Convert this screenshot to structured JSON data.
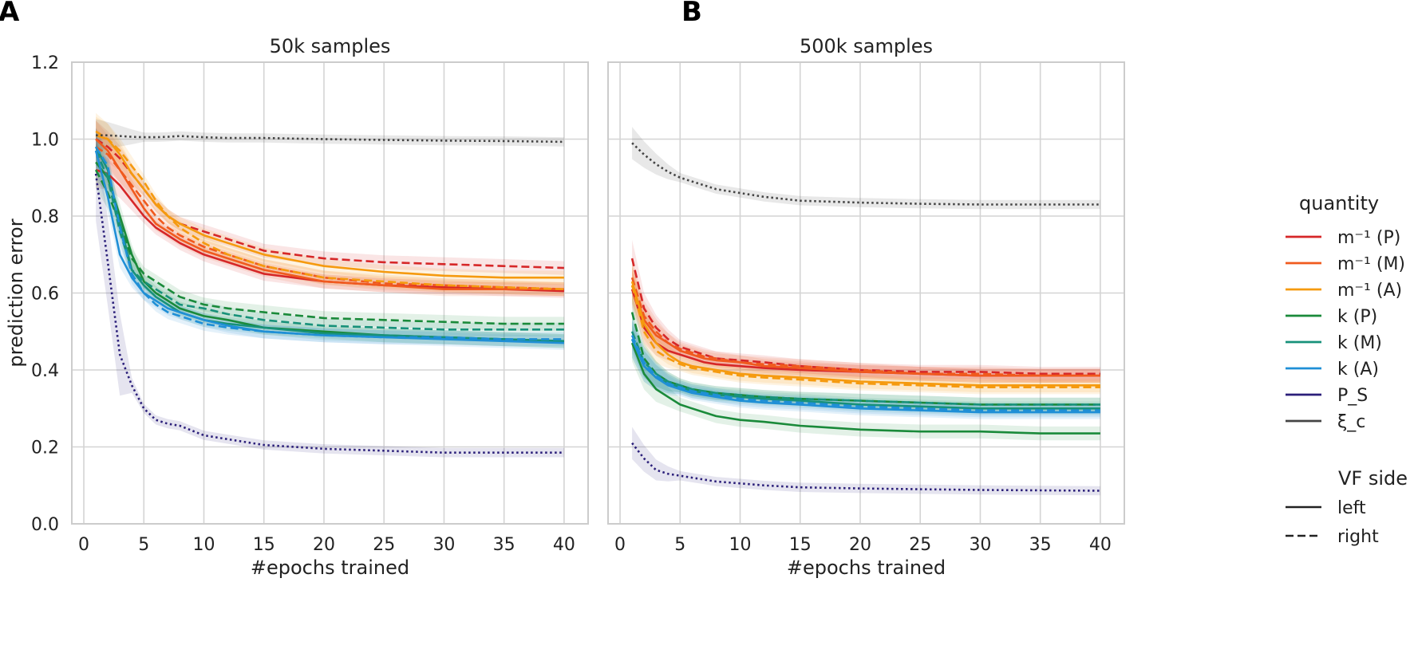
{
  "panels": {
    "a": {
      "letter": "A"
    },
    "b": {
      "letter": "B"
    }
  },
  "colors": {
    "m_P": "#d62728",
    "m_M": "#f05a1e",
    "m_A": "#f59a0f",
    "k_P": "#1a8a3a",
    "k_M": "#17917a",
    "k_A": "#1f8fd6",
    "P_S": "#2b1f7a",
    "xi_c": "#444444"
  },
  "legend": {
    "quantity_title": "quantity",
    "items": [
      {
        "key": "m_P",
        "label": "m⁻¹ (P)"
      },
      {
        "key": "m_M",
        "label": "m⁻¹ (M)"
      },
      {
        "key": "m_A",
        "label": "m⁻¹ (A)"
      },
      {
        "key": "k_P",
        "label": "k (P)"
      },
      {
        "key": "k_M",
        "label": "k (M)"
      },
      {
        "key": "k_A",
        "label": "k (A)"
      },
      {
        "key": "P_S",
        "label": "P_S"
      },
      {
        "key": "xi_c",
        "label": "ξ_c"
      }
    ],
    "side_title": "VF side",
    "sides": [
      {
        "style": "solid",
        "label": "left"
      },
      {
        "style": "dashed",
        "label": "right"
      }
    ]
  },
  "chart_data": [
    {
      "type": "line",
      "title": "50k samples",
      "xlabel": "#epochs trained",
      "ylabel": "prediction error",
      "xlim": [
        -1,
        42
      ],
      "ylim": [
        0,
        1.2
      ],
      "xticks": [
        0,
        5,
        10,
        15,
        20,
        25,
        30,
        35,
        40
      ],
      "yticks": [
        0.0,
        0.2,
        0.4,
        0.6,
        0.8,
        1.0,
        1.2
      ],
      "x": [
        1,
        2,
        3,
        4,
        5,
        6,
        7,
        8,
        10,
        12,
        15,
        20,
        25,
        30,
        35,
        40
      ],
      "series": [
        {
          "name": "m⁻¹ (P) left",
          "key": "m_P",
          "style": "solid",
          "values": [
            0.92,
            0.91,
            0.88,
            0.84,
            0.8,
            0.77,
            0.75,
            0.73,
            0.7,
            0.68,
            0.65,
            0.63,
            0.62,
            0.615,
            0.61,
            0.605
          ]
        },
        {
          "name": "m⁻¹ (P) right",
          "key": "m_P",
          "style": "dashed",
          "values": [
            1.0,
            0.98,
            0.95,
            0.91,
            0.87,
            0.83,
            0.8,
            0.78,
            0.76,
            0.74,
            0.71,
            0.69,
            0.68,
            0.675,
            0.67,
            0.665
          ]
        },
        {
          "name": "m⁻¹ (M) left",
          "key": "m_M",
          "style": "solid",
          "values": [
            1.0,
            0.97,
            0.92,
            0.87,
            0.82,
            0.78,
            0.76,
            0.74,
            0.71,
            0.69,
            0.66,
            0.63,
            0.62,
            0.61,
            0.61,
            0.61
          ]
        },
        {
          "name": "m⁻¹ (M) right",
          "key": "m_M",
          "style": "dashed",
          "values": [
            0.98,
            0.96,
            0.92,
            0.88,
            0.84,
            0.8,
            0.77,
            0.75,
            0.72,
            0.7,
            0.67,
            0.64,
            0.625,
            0.62,
            0.615,
            0.61
          ]
        },
        {
          "name": "m⁻¹ (A) left",
          "key": "m_A",
          "style": "solid",
          "values": [
            1.01,
            1.0,
            0.96,
            0.91,
            0.87,
            0.83,
            0.8,
            0.78,
            0.75,
            0.73,
            0.7,
            0.67,
            0.655,
            0.645,
            0.64,
            0.64
          ]
        },
        {
          "name": "m⁻¹ (A) right",
          "key": "m_A",
          "style": "dashed",
          "values": [
            1.02,
            1.0,
            0.97,
            0.93,
            0.89,
            0.84,
            0.8,
            0.77,
            0.73,
            0.7,
            0.67,
            0.64,
            0.63,
            0.62,
            0.615,
            0.61
          ]
        },
        {
          "name": "k (P) left",
          "key": "k_P",
          "style": "solid",
          "values": [
            0.94,
            0.9,
            0.8,
            0.7,
            0.63,
            0.6,
            0.58,
            0.56,
            0.54,
            0.53,
            0.51,
            0.5,
            0.49,
            0.485,
            0.48,
            0.475
          ]
        },
        {
          "name": "k (P) right",
          "key": "k_P",
          "style": "dashed",
          "values": [
            0.92,
            0.86,
            0.78,
            0.69,
            0.65,
            0.63,
            0.61,
            0.59,
            0.57,
            0.56,
            0.55,
            0.535,
            0.53,
            0.525,
            0.52,
            0.52
          ]
        },
        {
          "name": "k (M) left",
          "key": "k_M",
          "style": "solid",
          "values": [
            0.98,
            0.92,
            0.78,
            0.66,
            0.62,
            0.59,
            0.57,
            0.55,
            0.53,
            0.52,
            0.51,
            0.495,
            0.49,
            0.485,
            0.48,
            0.475
          ]
        },
        {
          "name": "k (M) right",
          "key": "k_M",
          "style": "dashed",
          "values": [
            0.97,
            0.9,
            0.76,
            0.66,
            0.63,
            0.61,
            0.59,
            0.57,
            0.56,
            0.545,
            0.53,
            0.515,
            0.51,
            0.505,
            0.505,
            0.505
          ]
        },
        {
          "name": "k (A) left",
          "key": "k_A",
          "style": "solid",
          "values": [
            0.97,
            0.85,
            0.7,
            0.64,
            0.6,
            0.58,
            0.56,
            0.55,
            0.53,
            0.515,
            0.5,
            0.49,
            0.485,
            0.48,
            0.475,
            0.47
          ]
        },
        {
          "name": "k (A) right",
          "key": "k_A",
          "style": "dashed",
          "values": [
            0.98,
            0.93,
            0.77,
            0.65,
            0.6,
            0.57,
            0.55,
            0.54,
            0.52,
            0.51,
            0.5,
            0.49,
            0.485,
            0.485,
            0.48,
            0.48
          ]
        },
        {
          "name": "P_S",
          "key": "P_S",
          "style": "dotted",
          "values": [
            0.91,
            0.68,
            0.44,
            0.36,
            0.3,
            0.27,
            0.26,
            0.255,
            0.23,
            0.22,
            0.205,
            0.195,
            0.19,
            0.185,
            0.185,
            0.185
          ]
        },
        {
          "name": "ξ_c",
          "key": "xi_c",
          "style": "dotted",
          "values": [
            1.01,
            1.01,
            1.008,
            1.006,
            1.005,
            1.005,
            1.006,
            1.008,
            1.005,
            1.003,
            1.003,
            1.0,
            0.998,
            0.996,
            0.995,
            0.993
          ]
        }
      ]
    },
    {
      "type": "line",
      "title": "500k samples",
      "xlabel": "#epochs trained",
      "ylabel": "",
      "xlim": [
        -1,
        42
      ],
      "ylim": [
        0,
        1.2
      ],
      "xticks": [
        0,
        5,
        10,
        15,
        20,
        25,
        30,
        35,
        40
      ],
      "yticks": [
        0.0,
        0.2,
        0.4,
        0.6,
        0.8,
        1.0,
        1.2
      ],
      "x": [
        1,
        2,
        3,
        4,
        5,
        6,
        7,
        8,
        10,
        12,
        15,
        20,
        25,
        30,
        35,
        40
      ],
      "series": [
        {
          "name": "m⁻¹ (P) left",
          "key": "m_P",
          "style": "solid",
          "values": [
            0.61,
            0.51,
            0.47,
            0.45,
            0.44,
            0.43,
            0.42,
            0.415,
            0.41,
            0.405,
            0.4,
            0.395,
            0.39,
            0.385,
            0.385,
            0.385
          ]
        },
        {
          "name": "m⁻¹ (P) right",
          "key": "m_P",
          "style": "dashed",
          "values": [
            0.69,
            0.56,
            0.51,
            0.48,
            0.46,
            0.45,
            0.44,
            0.43,
            0.425,
            0.42,
            0.41,
            0.4,
            0.395,
            0.395,
            0.39,
            0.39
          ]
        },
        {
          "name": "m⁻¹ (M) left",
          "key": "m_M",
          "style": "solid",
          "values": [
            0.62,
            0.53,
            0.49,
            0.47,
            0.45,
            0.44,
            0.43,
            0.425,
            0.42,
            0.41,
            0.405,
            0.395,
            0.39,
            0.385,
            0.385,
            0.385
          ]
        },
        {
          "name": "m⁻¹ (M) right",
          "key": "m_M",
          "style": "dashed",
          "values": [
            0.64,
            0.54,
            0.5,
            0.47,
            0.455,
            0.445,
            0.435,
            0.43,
            0.42,
            0.415,
            0.41,
            0.4,
            0.39,
            0.39,
            0.385,
            0.385
          ]
        },
        {
          "name": "m⁻¹ (A) left",
          "key": "m_A",
          "style": "solid",
          "values": [
            0.63,
            0.52,
            0.47,
            0.44,
            0.42,
            0.41,
            0.405,
            0.4,
            0.39,
            0.385,
            0.38,
            0.37,
            0.365,
            0.36,
            0.36,
            0.36
          ]
        },
        {
          "name": "m⁻¹ (A) right",
          "key": "m_A",
          "style": "dashed",
          "values": [
            0.62,
            0.5,
            0.45,
            0.43,
            0.415,
            0.405,
            0.4,
            0.395,
            0.385,
            0.38,
            0.375,
            0.365,
            0.36,
            0.355,
            0.355,
            0.355
          ]
        },
        {
          "name": "k (P) left",
          "key": "k_P",
          "style": "solid",
          "values": [
            0.47,
            0.39,
            0.35,
            0.33,
            0.31,
            0.3,
            0.29,
            0.28,
            0.27,
            0.265,
            0.255,
            0.245,
            0.24,
            0.24,
            0.235,
            0.235
          ]
        },
        {
          "name": "k (P) right",
          "key": "k_P",
          "style": "dashed",
          "values": [
            0.55,
            0.43,
            0.39,
            0.37,
            0.36,
            0.35,
            0.345,
            0.34,
            0.335,
            0.33,
            0.325,
            0.32,
            0.315,
            0.31,
            0.31,
            0.31
          ]
        },
        {
          "name": "k (M) left",
          "key": "k_M",
          "style": "solid",
          "values": [
            0.48,
            0.41,
            0.38,
            0.365,
            0.355,
            0.345,
            0.34,
            0.335,
            0.33,
            0.325,
            0.32,
            0.31,
            0.305,
            0.3,
            0.3,
            0.3
          ]
        },
        {
          "name": "k (M) right",
          "key": "k_M",
          "style": "dashed",
          "values": [
            0.5,
            0.42,
            0.39,
            0.37,
            0.36,
            0.35,
            0.345,
            0.34,
            0.335,
            0.33,
            0.325,
            0.32,
            0.315,
            0.31,
            0.31,
            0.31
          ]
        },
        {
          "name": "k (A) left",
          "key": "k_A",
          "style": "solid",
          "values": [
            0.48,
            0.41,
            0.38,
            0.36,
            0.35,
            0.34,
            0.335,
            0.33,
            0.32,
            0.315,
            0.31,
            0.3,
            0.295,
            0.29,
            0.29,
            0.29
          ]
        },
        {
          "name": "k (A) right",
          "key": "k_A",
          "style": "dashed",
          "values": [
            0.49,
            0.42,
            0.385,
            0.365,
            0.355,
            0.345,
            0.34,
            0.335,
            0.325,
            0.32,
            0.315,
            0.305,
            0.3,
            0.295,
            0.295,
            0.295
          ]
        },
        {
          "name": "P_S",
          "key": "P_S",
          "style": "dotted",
          "values": [
            0.21,
            0.17,
            0.14,
            0.13,
            0.125,
            0.12,
            0.115,
            0.11,
            0.105,
            0.1,
            0.095,
            0.092,
            0.09,
            0.088,
            0.087,
            0.086
          ]
        },
        {
          "name": "ξ_c",
          "key": "xi_c",
          "style": "dotted",
          "values": [
            0.99,
            0.96,
            0.935,
            0.915,
            0.9,
            0.89,
            0.88,
            0.87,
            0.86,
            0.85,
            0.84,
            0.835,
            0.832,
            0.83,
            0.83,
            0.83
          ]
        }
      ]
    }
  ]
}
